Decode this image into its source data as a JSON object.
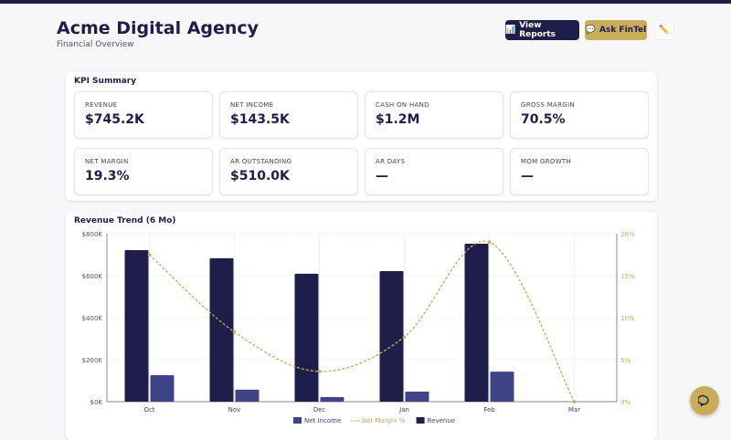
{
  "header": {
    "title": "Acme Digital Agency",
    "subtitle": "Financial Overview",
    "view_reports": "View Reports",
    "ask_fintel": "Ask FinTel",
    "edit_icon": "pencil-icon"
  },
  "kpi": {
    "title": "KPI Summary",
    "tiles": [
      {
        "label": "REVENUE",
        "value": "$745.2K"
      },
      {
        "label": "NET INCOME",
        "value": "$143.5K"
      },
      {
        "label": "CASH ON HAND",
        "value": "$1.2M"
      },
      {
        "label": "GROSS MARGIN",
        "value": "70.5%"
      },
      {
        "label": "NET MARGIN",
        "value": "19.3%"
      },
      {
        "label": "AR OUTSTANDING",
        "value": "$510.0K"
      },
      {
        "label": "AR DAYS",
        "value": "—"
      },
      {
        "label": "MOM GROWTH",
        "value": "—"
      }
    ]
  },
  "chart_data": {
    "type": "bar",
    "title": "Revenue Trend (6 Mo)",
    "categories": [
      "Oct",
      "Nov",
      "Dec",
      "Jan",
      "Feb",
      "Mar"
    ],
    "ylim": [
      0,
      800
    ],
    "y_ticks": [
      "$0K",
      "$200K",
      "$400K",
      "$600K",
      "$800K"
    ],
    "y2lim": [
      0,
      20
    ],
    "y2_ticks": [
      "0%",
      "5%",
      "10%",
      "15%",
      "20%"
    ],
    "series": [
      {
        "name": "Revenue",
        "type": "bar",
        "color": "#1f1d4a",
        "values": [
          722,
          683,
          609,
          622,
          752,
          0
        ]
      },
      {
        "name": "Net Income",
        "type": "bar",
        "color": "#3f4488",
        "values": [
          126,
          57,
          22,
          48,
          143,
          0
        ]
      },
      {
        "name": "Net Margin %",
        "type": "line",
        "axis": "right",
        "color": "#c8ad5c",
        "values": [
          17.5,
          8.3,
          3.6,
          7.7,
          19.0,
          0
        ]
      }
    ],
    "legend": [
      "Net Income",
      "Net Margin %",
      "Revenue"
    ],
    "legend_position": "bottom",
    "grid": true
  },
  "colors": {
    "primary": "#1f1d4a",
    "accent": "#c8ad5c"
  }
}
